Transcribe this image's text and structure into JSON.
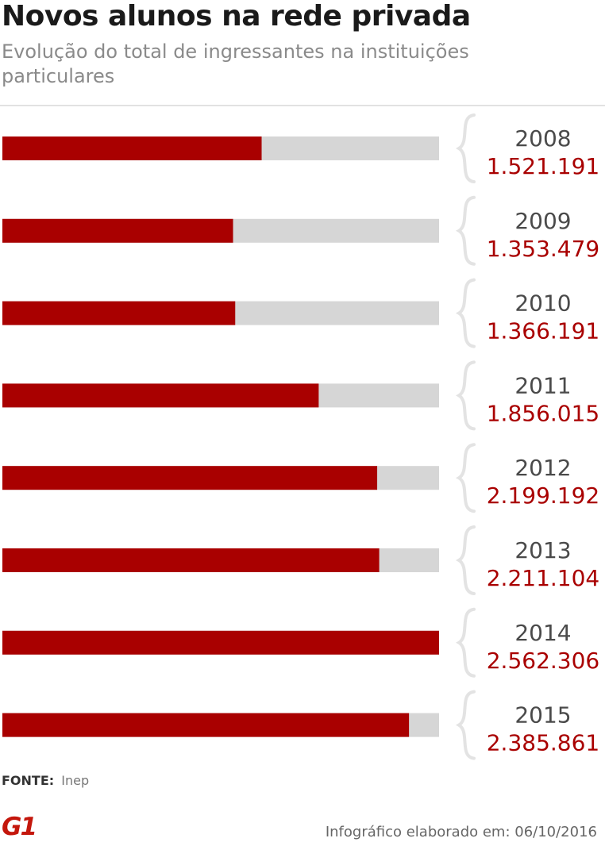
{
  "header": {
    "title": "Novos alunos na rede privada",
    "subtitle": "Evolução do total de ingressantes na instituições particulares"
  },
  "chart_data": {
    "type": "bar",
    "orientation": "horizontal",
    "categories": [
      "2008",
      "2009",
      "2010",
      "2011",
      "2012",
      "2013",
      "2014",
      "2015"
    ],
    "values": [
      1521191,
      1353479,
      1366191,
      1856015,
      2199192,
      2211104,
      2562306,
      2385861
    ],
    "value_labels": [
      "1.521.191",
      "1.353.479",
      "1.366.191",
      "1.856.015",
      "2.199.192",
      "2.211.104",
      "2.562.306",
      "2.385.861"
    ],
    "xlim": [
      0,
      2562306
    ],
    "title": "Novos alunos na rede privada",
    "subtitle": "Evolução do total de ingressantes na instituições particulares",
    "xlabel": "",
    "ylabel": "",
    "grid": false,
    "colors": {
      "bar": "#a90000",
      "track": "#d6d6d6",
      "label": "#a90000",
      "year": "#4a4a4a",
      "brace": "#e3e3e3"
    }
  },
  "footer": {
    "source_label": "FONTE:",
    "source_value": "Inep",
    "logo": "G1",
    "credit": "Infográfico elaborado em: 06/10/2016"
  }
}
